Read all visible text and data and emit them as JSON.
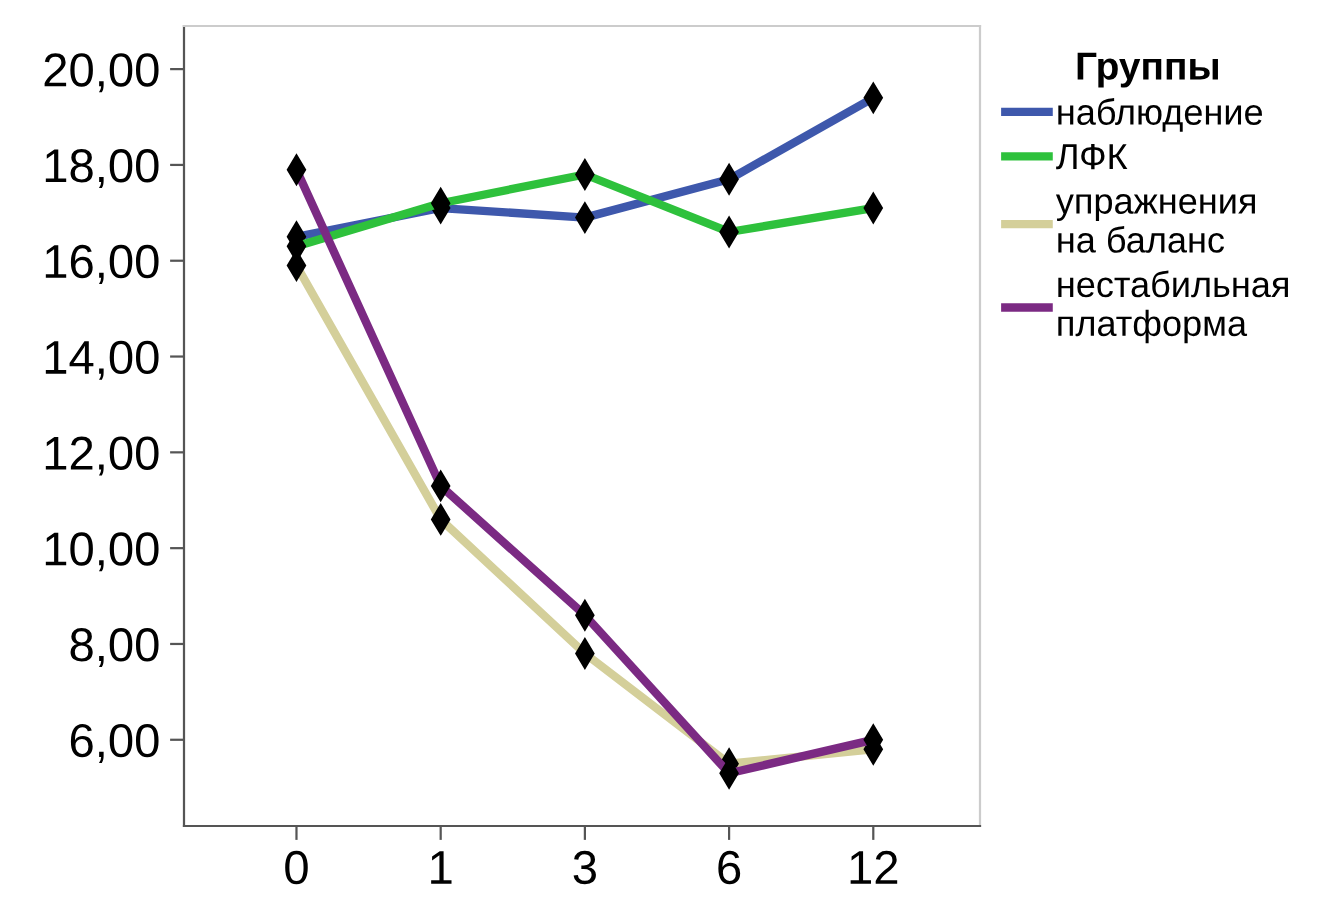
{
  "chart_data": {
    "type": "line",
    "legend_title": "Группы",
    "categories": [
      "0",
      "1",
      "3",
      "6",
      "12"
    ],
    "ylim": [
      4.2,
      20.9
    ],
    "yticks": [
      {
        "value": 6,
        "label": "6,00"
      },
      {
        "value": 8,
        "label": "8,00"
      },
      {
        "value": 10,
        "label": "10,00"
      },
      {
        "value": 12,
        "label": "12,00"
      },
      {
        "value": 14,
        "label": "14,00"
      },
      {
        "value": 16,
        "label": "16,00"
      },
      {
        "value": 18,
        "label": "18,00"
      },
      {
        "value": 20,
        "label": "20,00"
      }
    ],
    "grid": false,
    "legend": "top right",
    "marker": "diamond",
    "line_style": "solid",
    "series": [
      {
        "name": "наблюдение",
        "color": "#3e58ac",
        "values": [
          16.5,
          17.1,
          16.9,
          17.7,
          19.4
        ]
      },
      {
        "name": "ЛФК",
        "color": "#2ec13c",
        "values": [
          16.3,
          17.2,
          17.8,
          16.6,
          17.1
        ]
      },
      {
        "name": "упражнения\nна баланс",
        "color": "#d4cf9a",
        "values": [
          15.9,
          10.6,
          7.8,
          5.5,
          5.8
        ]
      },
      {
        "name": "нестабильная\nплатформа",
        "color": "#7b2a83",
        "values": [
          17.9,
          11.3,
          8.6,
          5.3,
          6.0
        ]
      }
    ]
  }
}
